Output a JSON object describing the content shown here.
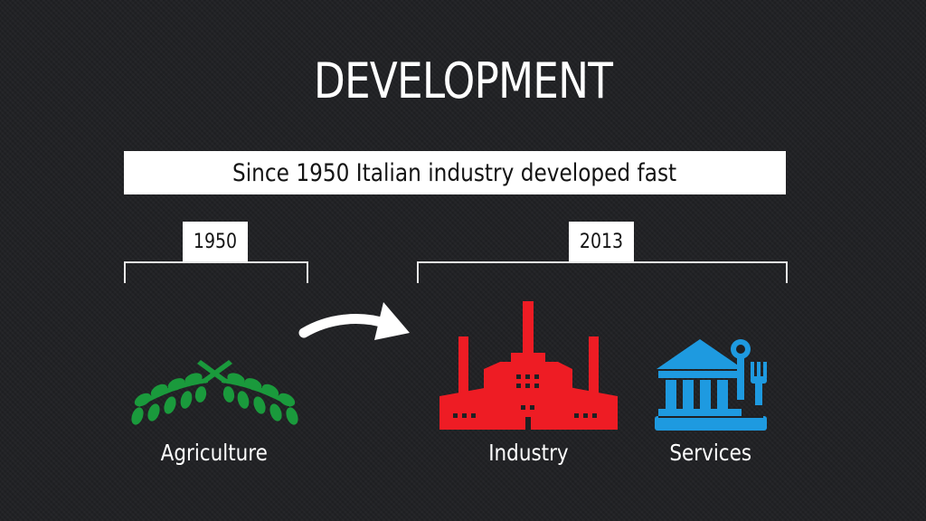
{
  "title": "DEVELOPMENT",
  "banner": "Since 1950 Italian industry developed fast",
  "periods": [
    {
      "year": "1950"
    },
    {
      "year": "2013"
    }
  ],
  "sectors": [
    {
      "label": "Agriculture",
      "icon": "olive-branch-icon",
      "color": "#1a9a3c"
    },
    {
      "label": "Industry",
      "icon": "factory-icon",
      "color": "#ee1c24"
    },
    {
      "label": "Services",
      "icon": "bank-tools-icon",
      "color": "#1e9ae0"
    }
  ],
  "arrow": "curved-arrow-icon",
  "colors": {
    "background": "#1f2023",
    "text": "#ffffff"
  }
}
